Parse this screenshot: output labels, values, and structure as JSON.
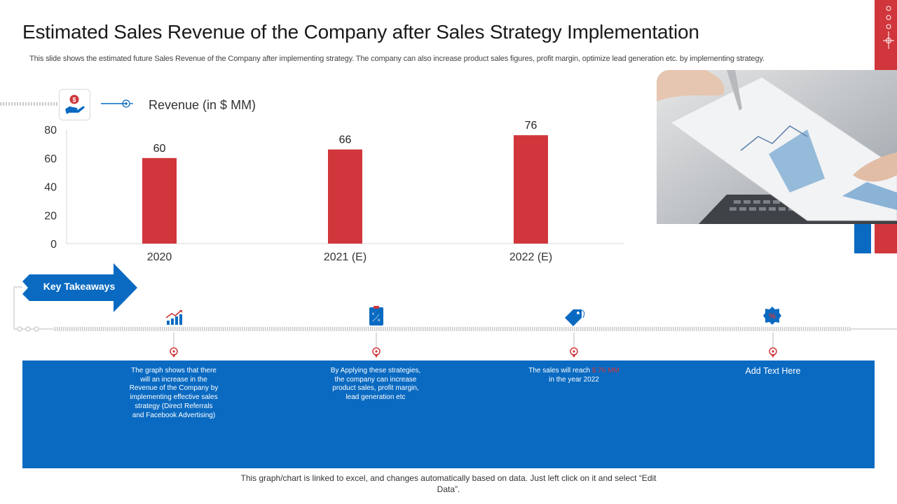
{
  "slide": {
    "title": "Estimated Sales Revenue of the Company after Sales Strategy Implementation",
    "subtitle": "This slide shows the estimated future Sales Revenue of the Company after implementing strategy. The company can also increase product sales figures, profit margin, optimize lead generation etc. by implementing strategy."
  },
  "chart_data": {
    "type": "bar",
    "title": "",
    "ylabel": "Revenue (in $ MM)",
    "xlabel": "",
    "categories": [
      "2020",
      "2021 (E)",
      "2022 (E)"
    ],
    "values": [
      60,
      66,
      76
    ],
    "ylim": [
      0,
      80
    ],
    "yticks": [
      0,
      20,
      40,
      60,
      80
    ],
    "bar_color": "#d0363b",
    "grid": false,
    "legend": "none"
  },
  "key_takeaways": {
    "label": "Key Takeaways",
    "items": [
      {
        "icon": "growth-chart-icon",
        "text": "The graph shows that there will an increase in the Revenue of the Company by implementing effective sales strategy (Direct Referrals and Facebook Advertising)"
      },
      {
        "icon": "strategy-board-icon",
        "text": "By Applying these strategies, the company can increase product sales, profit margin, lead generation etc"
      },
      {
        "icon": "price-tag-icon",
        "text_before": "The sales will reach ",
        "text_highlight": "$ 76 MM",
        "text_after": " in the year 2022"
      },
      {
        "icon": "discount-badge-icon",
        "text": "Add Text Here"
      }
    ]
  },
  "footnote": "This graph/chart is linked to excel, and changes automatically based on data. Just left click on it and select “Edit Data”.",
  "colors": {
    "accent_red": "#d0363b",
    "accent_blue": "#0a6ac1"
  }
}
